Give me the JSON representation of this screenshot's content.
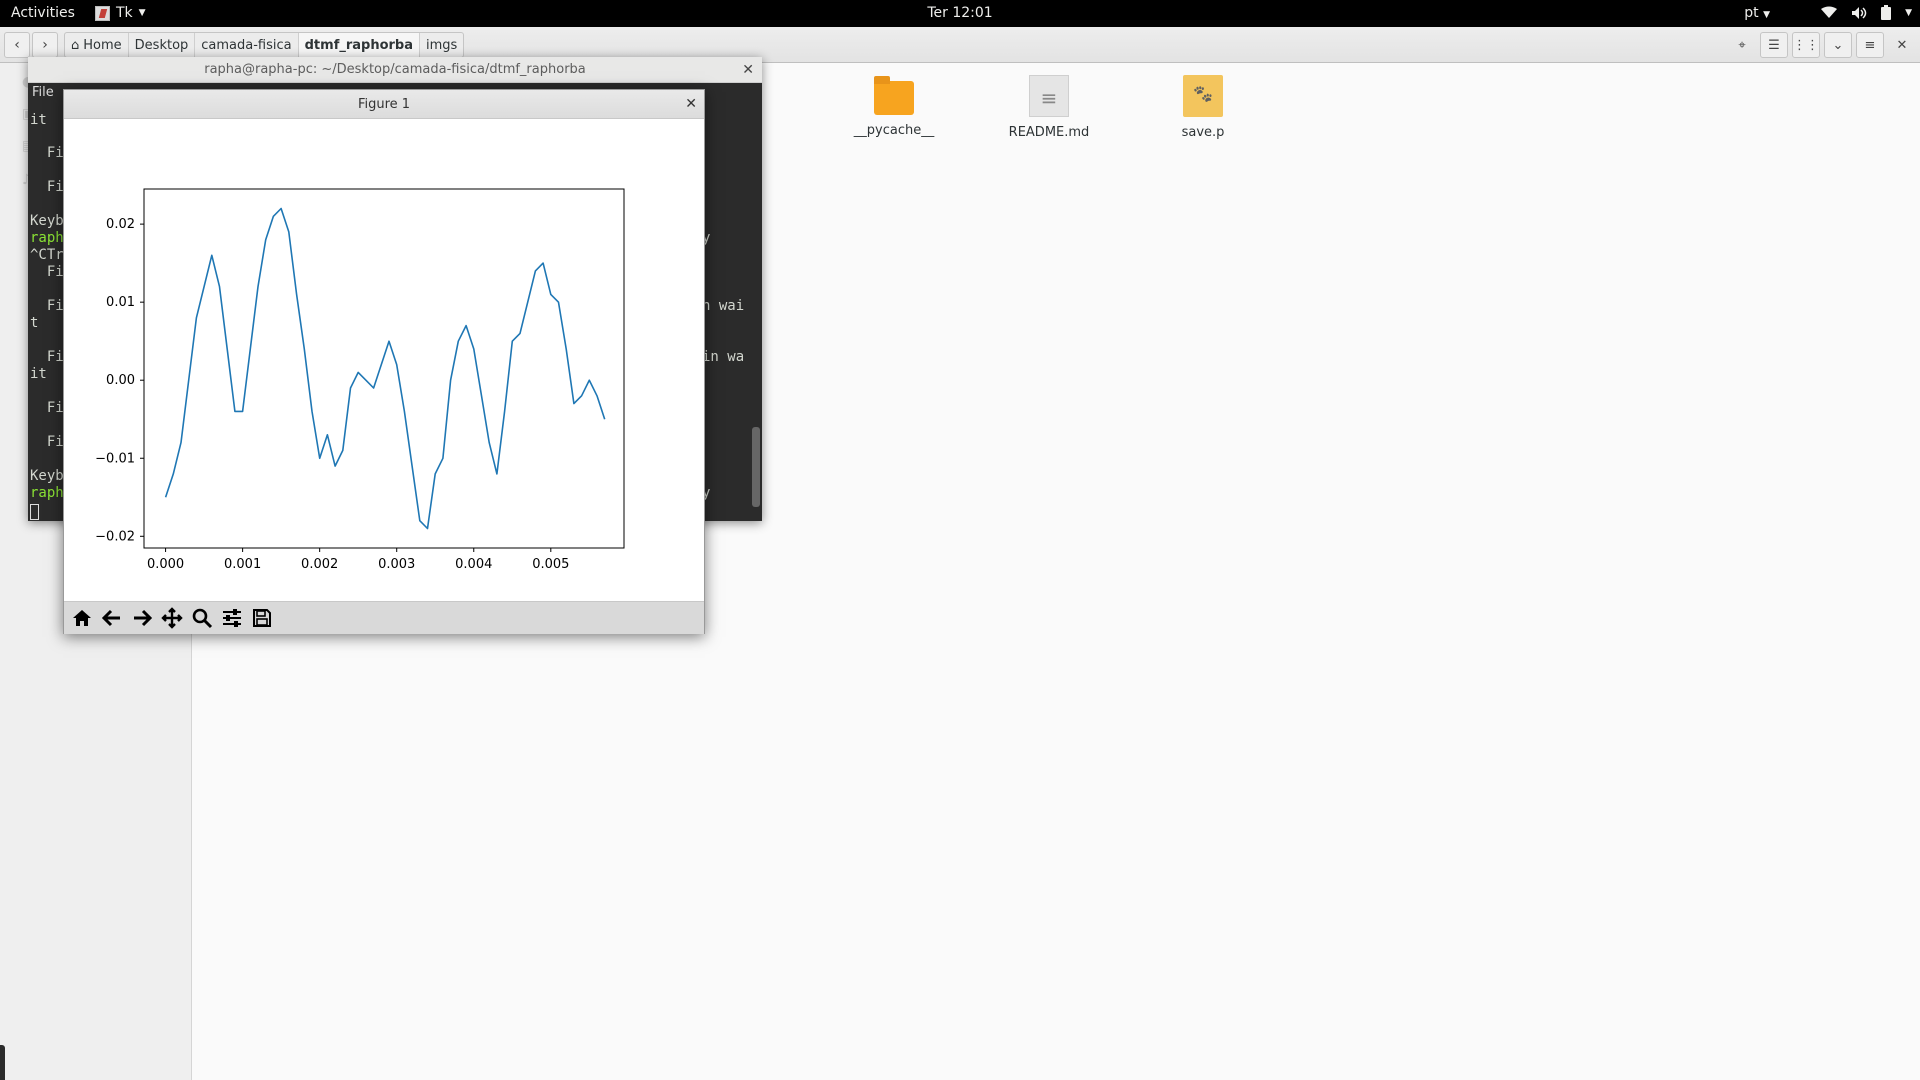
{
  "topbar": {
    "activities": "Activities",
    "app_name": "Tk",
    "clock": "Ter 12:01",
    "language": "pt"
  },
  "file_manager": {
    "breadcrumb": [
      "Home",
      "Desktop",
      "camada-fisica",
      "dtmf_raphorba",
      "imgs"
    ],
    "current_crumb_index": 3,
    "files": [
      {
        "name": "__pycache__",
        "icon": "folder-icon"
      },
      {
        "name": "README.md",
        "icon": "text-document-icon"
      },
      {
        "name": "save.p",
        "icon": "paw-file-icon"
      }
    ]
  },
  "terminal": {
    "title": "rapha@rapha-pc: ~/Desktop/camada-fisica/dtmf_raphorba",
    "menu_file": "File",
    "lines": [
      "it",
      "  Fi",
      "  Fi",
      "Keyb",
      "raph",
      "^CTr",
      "  Fi",
      "  Fi",
      "t",
      "  Fi",
      "it",
      "  Fi",
      "  Fi",
      "Keyb",
      "raph"
    ],
    "right_fragments": [
      "y",
      "n wai",
      "in wa",
      "y"
    ]
  },
  "figure": {
    "title": "Figure 1",
    "toolbar": [
      "home",
      "back",
      "forward",
      "pan",
      "zoom",
      "configure-subplots",
      "save"
    ]
  },
  "chart_data": {
    "type": "line",
    "title": "",
    "xlabel": "",
    "ylabel": "",
    "xlim": [
      -0.00028,
      0.00595
    ],
    "ylim": [
      -0.0215,
      0.0245
    ],
    "xticks": [
      "0.000",
      "0.001",
      "0.002",
      "0.003",
      "0.004",
      "0.005"
    ],
    "yticks": [
      "−0.02",
      "−0.01",
      "0.00",
      "0.01",
      "0.02"
    ],
    "color": "#1f77b4",
    "series": [
      {
        "x": [
          0.0,
          0.0001,
          0.0002,
          0.0003,
          0.0004,
          0.0005,
          0.0006,
          0.0007,
          0.0008,
          0.0009,
          0.001,
          0.0011,
          0.0012,
          0.0013,
          0.0014,
          0.0015,
          0.0016,
          0.0017,
          0.0018,
          0.0019,
          0.002,
          0.0021,
          0.0022,
          0.0023,
          0.0024,
          0.0025,
          0.0026,
          0.0027,
          0.0028,
          0.0029,
          0.003,
          0.0031,
          0.0032,
          0.0033,
          0.0034,
          0.0035,
          0.0036,
          0.0037,
          0.0038,
          0.0039,
          0.004,
          0.0041,
          0.0042,
          0.0043,
          0.0044,
          0.0045,
          0.0046,
          0.0047,
          0.0048,
          0.0049,
          0.005,
          0.0051,
          0.0052,
          0.0053,
          0.0054,
          0.0055,
          0.0056,
          0.0057
        ],
        "y": [
          -0.015,
          -0.012,
          -0.008,
          0.0,
          0.008,
          0.012,
          0.016,
          0.012,
          0.004,
          -0.004,
          -0.004,
          0.004,
          0.012,
          0.018,
          0.021,
          0.022,
          0.019,
          0.011,
          0.004,
          -0.004,
          -0.01,
          -0.007,
          -0.011,
          -0.009,
          -0.001,
          0.001,
          0.0,
          -0.001,
          0.002,
          0.005,
          0.002,
          -0.004,
          -0.011,
          -0.018,
          -0.019,
          -0.012,
          -0.01,
          0.0,
          0.005,
          0.007,
          0.004,
          -0.002,
          -0.008,
          -0.012,
          -0.004,
          0.005,
          0.006,
          0.01,
          0.014,
          0.015,
          0.011,
          0.01,
          0.004,
          -0.003,
          -0.002,
          0.0,
          -0.002,
          -0.005
        ]
      }
    ]
  }
}
